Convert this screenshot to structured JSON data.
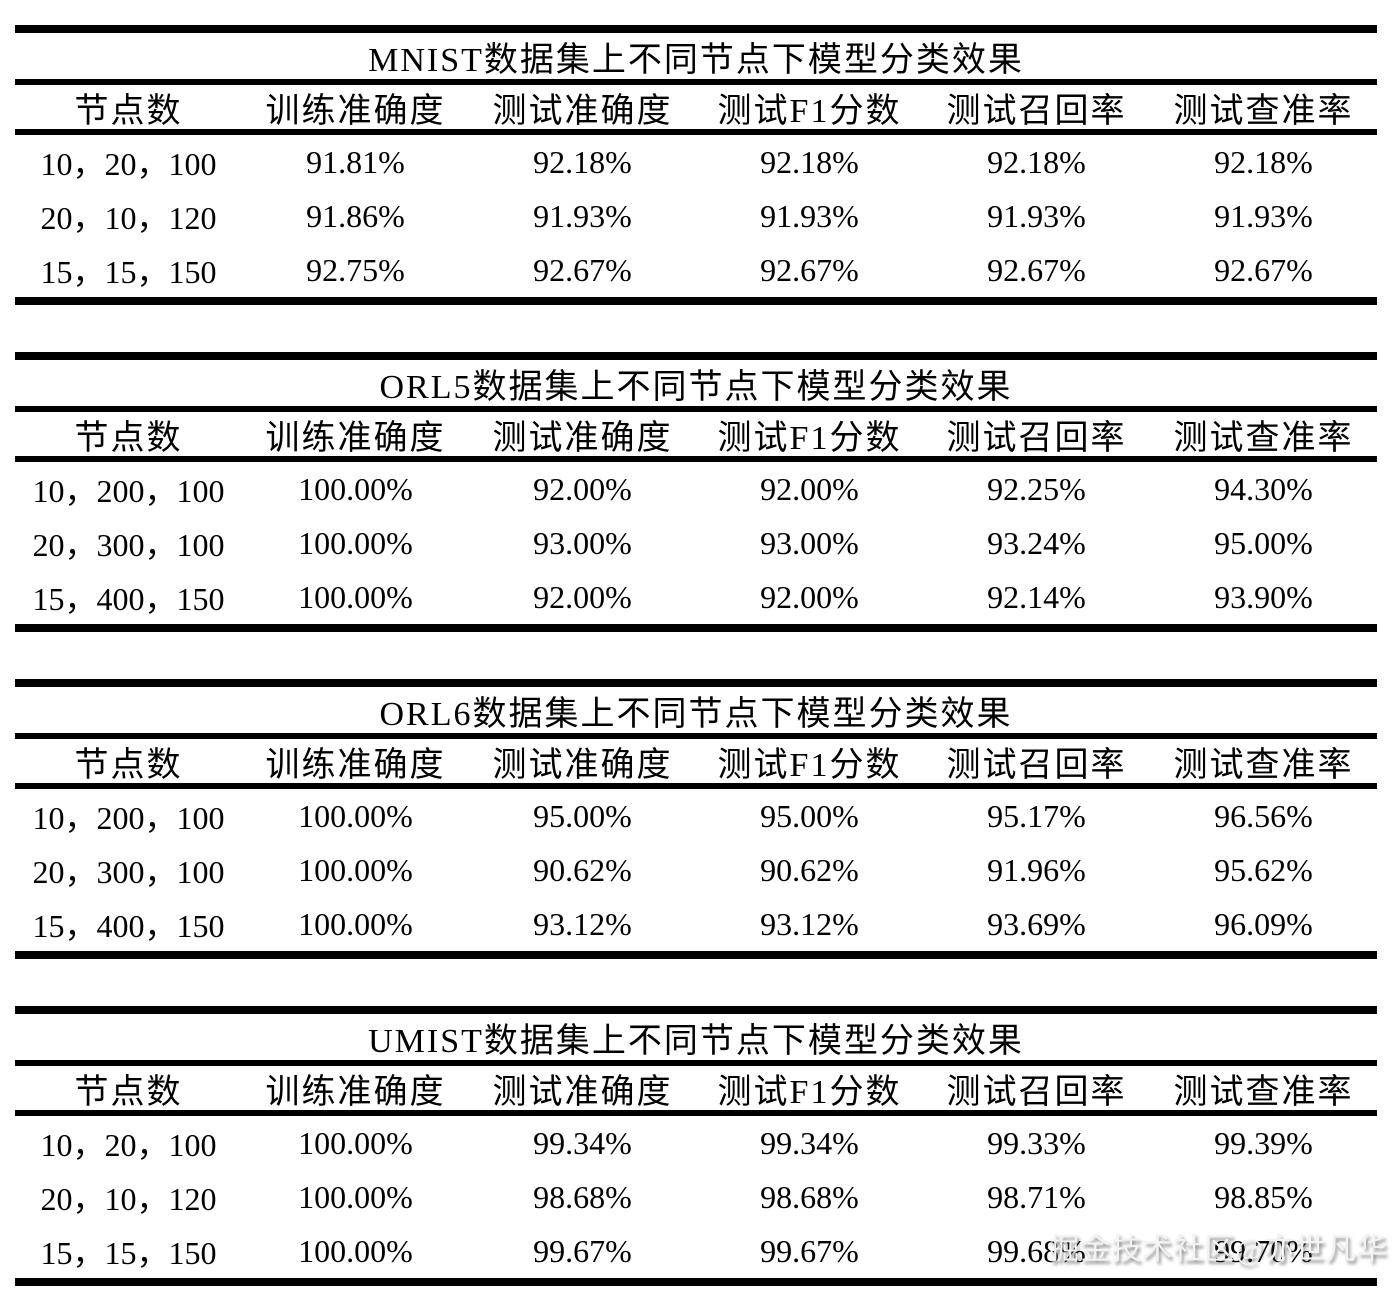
{
  "page": {
    "background_color": "#ffffff",
    "text_color": "#000000",
    "rule_color": "#000000"
  },
  "watermark": {
    "text": "掘金技术社区@亦世凡华",
    "color": "#f3f3f3"
  },
  "tables": [
    {
      "id": "mnist",
      "title": "MNIST数据集上不同节点下模型分类效果",
      "headers": [
        "节点数",
        "训练准确度",
        "测试准确度",
        "测试F1分数",
        "测试召回率",
        "测试查准率"
      ],
      "rows": [
        [
          "10，20，100",
          "91.81%",
          "92.18%",
          "92.18%",
          "92.18%",
          "92.18%"
        ],
        [
          "20，10，120",
          "91.86%",
          "91.93%",
          "91.93%",
          "91.93%",
          "91.93%"
        ],
        [
          "15，15，150",
          "92.75%",
          "92.67%",
          "92.67%",
          "92.67%",
          "92.67%"
        ]
      ]
    },
    {
      "id": "orl5",
      "title": "ORL5数据集上不同节点下模型分类效果",
      "headers": [
        "节点数",
        "训练准确度",
        "测试准确度",
        "测试F1分数",
        "测试召回率",
        "测试查准率"
      ],
      "rows": [
        [
          "10，200，100",
          "100.00%",
          "92.00%",
          "92.00%",
          "92.25%",
          "94.30%"
        ],
        [
          "20，300，100",
          "100.00%",
          "93.00%",
          "93.00%",
          "93.24%",
          "95.00%"
        ],
        [
          "15，400，150",
          "100.00%",
          "92.00%",
          "92.00%",
          "92.14%",
          "93.90%"
        ]
      ]
    },
    {
      "id": "orl6",
      "title": "ORL6数据集上不同节点下模型分类效果",
      "headers": [
        "节点数",
        "训练准确度",
        "测试准确度",
        "测试F1分数",
        "测试召回率",
        "测试查准率"
      ],
      "rows": [
        [
          "10，200，100",
          "100.00%",
          "95.00%",
          "95.00%",
          "95.17%",
          "96.56%"
        ],
        [
          "20，300，100",
          "100.00%",
          "90.62%",
          "90.62%",
          "91.96%",
          "95.62%"
        ],
        [
          "15，400，150",
          "100.00%",
          "93.12%",
          "93.12%",
          "93.69%",
          "96.09%"
        ]
      ]
    },
    {
      "id": "umist",
      "title": "UMIST数据集上不同节点下模型分类效果",
      "headers": [
        "节点数",
        "训练准确度",
        "测试准确度",
        "测试F1分数",
        "测试召回率",
        "测试查准率"
      ],
      "rows": [
        [
          "10，20，100",
          "100.00%",
          "99.34%",
          "99.34%",
          "99.33%",
          "99.39%"
        ],
        [
          "20，10，120",
          "100.00%",
          "98.68%",
          "98.68%",
          "98.71%",
          "98.85%"
        ],
        [
          "15，15，150",
          "100.00%",
          "99.67%",
          "99.67%",
          "99.68%",
          "99.70%"
        ]
      ]
    }
  ]
}
